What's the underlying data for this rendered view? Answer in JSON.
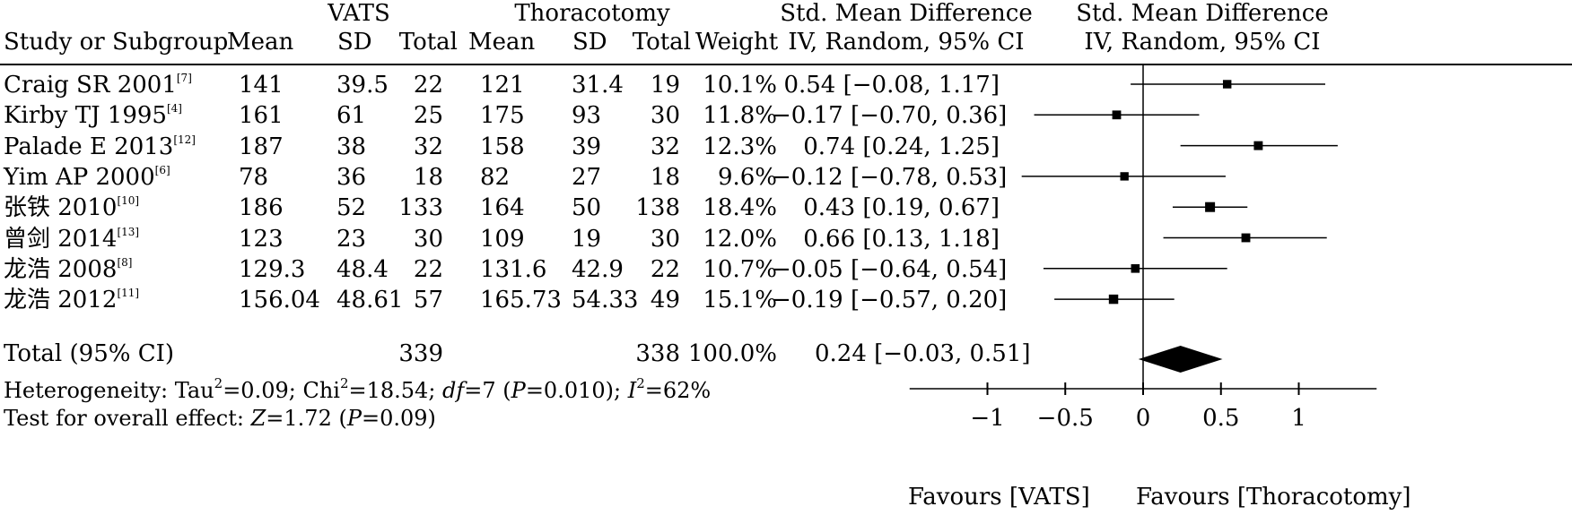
{
  "header": {
    "group1": "VATS",
    "group2": "Thoracotomy",
    "smd_left_line1": "Std. Mean Difference",
    "smd_left_line2": "IV, Random, 95% CI",
    "smd_right_line1": "Std. Mean Difference",
    "smd_right_line2": "IV, Random, 95% CI",
    "study": "Study or Subgroup",
    "mean1": "Mean",
    "sd1": "SD",
    "total1": "Total",
    "mean2": "Mean",
    "sd2": "SD",
    "total2": "Total",
    "weight": "Weight"
  },
  "studies": [
    {
      "name": "Craig SR 2001",
      "ref": "[7]",
      "mean1": "141",
      "sd1": "39.5",
      "n1": "22",
      "mean2": "121",
      "sd2": "31.4",
      "n2": "19",
      "weight": "10.1%",
      "ci": "0.54 [−0.08, 1.17]"
    },
    {
      "name": "Kirby TJ 1995",
      "ref": "[4]",
      "mean1": "161",
      "sd1": "61",
      "n1": "25",
      "mean2": "175",
      "sd2": "93",
      "n2": "30",
      "weight": "11.8%",
      "ci": "−0.17 [−0.70, 0.36]"
    },
    {
      "name": "Palade E 2013",
      "ref": "[12]",
      "mean1": "187",
      "sd1": "38",
      "n1": "32",
      "mean2": "158",
      "sd2": "39",
      "n2": "32",
      "weight": "12.3%",
      "ci": "0.74 [0.24, 1.25]"
    },
    {
      "name": "Yim AP 2000",
      "ref": "[6]",
      "mean1": "78",
      "sd1": "36",
      "n1": "18",
      "mean2": "82",
      "sd2": "27",
      "n2": "18",
      "weight": "9.6%",
      "ci": "−0.12 [−0.78, 0.53]"
    },
    {
      "name": "张铁 2010",
      "ref": "[10]",
      "mean1": "186",
      "sd1": "52",
      "n1": "133",
      "mean2": "164",
      "sd2": "50",
      "n2": "138",
      "weight": "18.4%",
      "ci": "0.43 [0.19, 0.67]"
    },
    {
      "name": "曾剑 2014",
      "ref": "[13]",
      "mean1": "123",
      "sd1": "23",
      "n1": "30",
      "mean2": "109",
      "sd2": "19",
      "n2": "30",
      "weight": "12.0%",
      "ci": "0.66 [0.13, 1.18]"
    },
    {
      "name": "龙浩 2008",
      "ref": "[8]",
      "mean1": "129.3",
      "sd1": "48.4",
      "n1": "22",
      "mean2": "131.6",
      "sd2": "42.9",
      "n2": "22",
      "weight": "10.7%",
      "ci": "−0.05 [−0.64, 0.54]"
    },
    {
      "name": "龙浩 2012",
      "ref": "[11]",
      "mean1": "156.04",
      "sd1": "48.61",
      "n1": "57",
      "mean2": "165.73",
      "sd2": "54.33",
      "n2": "49",
      "weight": "15.1%",
      "ci": "−0.19 [−0.57, 0.20]"
    }
  ],
  "total": {
    "label": "Total (95% CI)",
    "n1": "339",
    "n2": "338",
    "weight": "100.0%",
    "ci": "0.24 [−0.03, 0.51]"
  },
  "heterogeneity": {
    "prefix": "Heterogeneity: Tau",
    "tau_sup": "2",
    "tau_val": "=0.09; Chi",
    "chi_sup": "2",
    "chi_val": "=18.54; ",
    "df_label": "df",
    "df_val": "=7 (",
    "p_label": "P",
    "p_val": "=0.010); ",
    "i_label": "I",
    "i_sup": "2",
    "i_val": "=62%"
  },
  "overall": {
    "prefix": "Test for overall effect: ",
    "z_label": "Z",
    "z_val": "=1.72 (",
    "p_label": "P",
    "p_val": "=0.09)"
  },
  "favours": {
    "left": "Favours [VATS]",
    "right": "Favours [Thoracotomy]"
  },
  "chart_data": {
    "type": "forest",
    "xlim": [
      -1.5,
      1.5
    ],
    "xticks": [
      -1,
      -0.5,
      0,
      0.5,
      1
    ],
    "xtick_labels": [
      "−1",
      "−0.5",
      "0",
      "0.5",
      "1"
    ],
    "x": [
      0.54,
      -0.17,
      0.74,
      -0.12,
      0.43,
      0.66,
      -0.05,
      -0.19
    ],
    "lower": [
      -0.08,
      -0.7,
      0.24,
      -0.78,
      0.19,
      0.13,
      -0.64,
      -0.57
    ],
    "upper": [
      1.17,
      0.36,
      1.25,
      0.53,
      0.67,
      1.18,
      0.54,
      0.2
    ],
    "weights": [
      10.1,
      11.8,
      12.3,
      9.6,
      18.4,
      12.0,
      10.7,
      15.1
    ],
    "pooled": {
      "estimate": 0.24,
      "lower": -0.03,
      "upper": 0.51
    }
  }
}
